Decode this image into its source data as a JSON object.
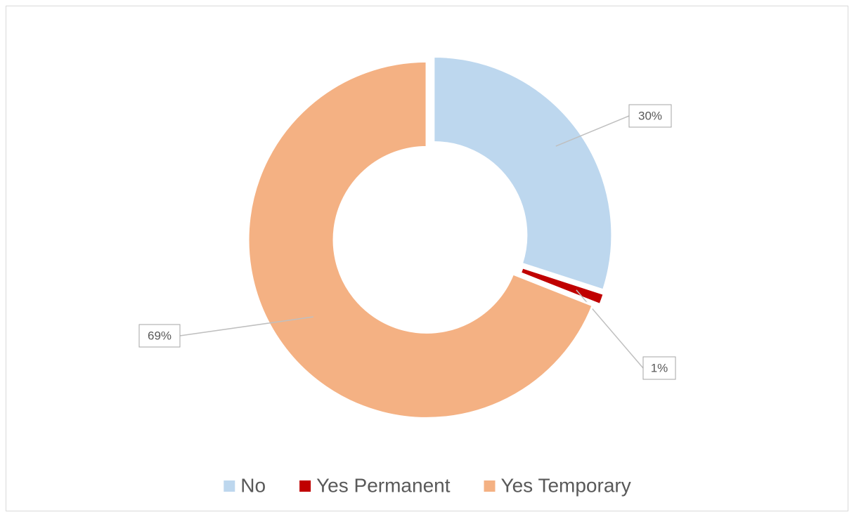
{
  "chart_data": {
    "type": "donut",
    "categories": [
      "No",
      "Yes Permanent",
      "Yes Temporary"
    ],
    "values": [
      30,
      1,
      69
    ],
    "value_labels": [
      "30%",
      "1%",
      "69%"
    ],
    "colors": [
      "#BDD7EE",
      "#C00000",
      "#F4B183"
    ],
    "legend": "bottom"
  }
}
